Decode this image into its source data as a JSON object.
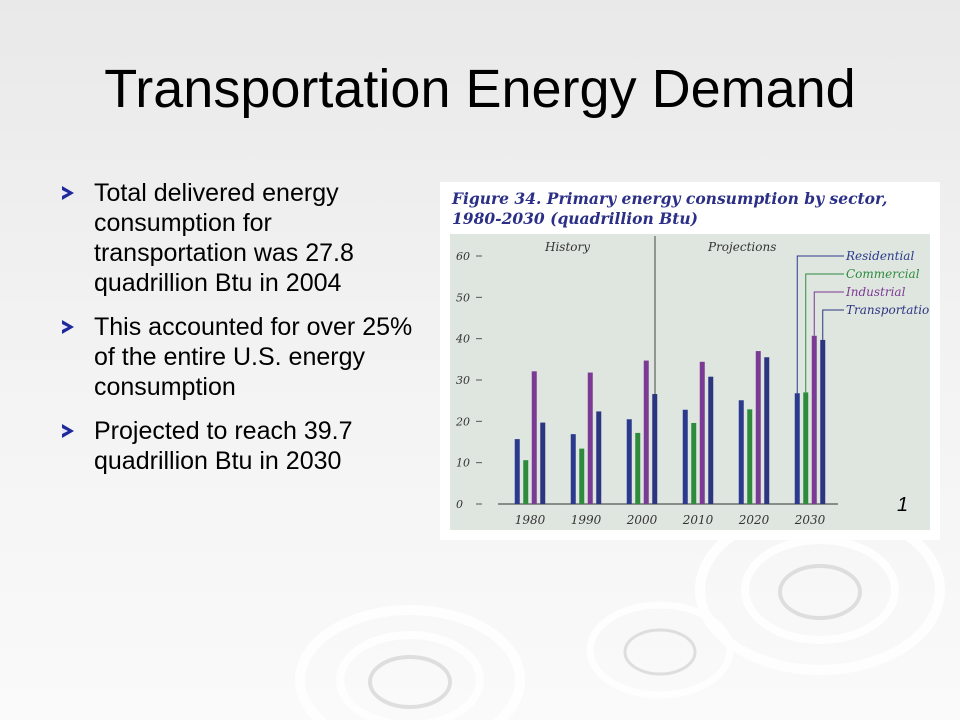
{
  "slide": {
    "title": "Transportation Energy Demand",
    "bullets": [
      "Total delivered energy consumption for transportation was 27.8 quadrillion Btu in 2004",
      "This accounted for over 25% of the entire U.S. energy consumption",
      "Projected to reach 39.7 quadrillion Btu in 2030"
    ],
    "footnote": "1"
  },
  "figure": {
    "caption_line1": "Figure 34. Primary energy consumption by sector,",
    "caption_line2": "1980-2030 (quadrillion Btu)"
  },
  "chart_data": {
    "type": "bar",
    "title": "Figure 34. Primary energy consumption by sector, 1980-2030 (quadrillion Btu)",
    "xlabel": "",
    "ylabel": "",
    "ylim": [
      0,
      60
    ],
    "yticks": [
      0,
      10,
      20,
      30,
      40,
      50,
      60
    ],
    "grid": false,
    "legend_placement": "top-right",
    "annotations": [
      "History",
      "Projections"
    ],
    "categories": [
      "1980",
      "1990",
      "2000",
      "2010",
      "2020",
      "2030"
    ],
    "series": [
      {
        "name": "Residential",
        "color": "#2b3a8c",
        "values": [
          15.7,
          16.9,
          20.5,
          22.8,
          25.1,
          26.8
        ]
      },
      {
        "name": "Commercial",
        "color": "#2e8b3e",
        "values": [
          10.6,
          13.4,
          17.2,
          19.6,
          22.9,
          27.0
        ]
      },
      {
        "name": "Industrial",
        "color": "#7b3a93",
        "values": [
          32.1,
          31.8,
          34.7,
          34.4,
          37.0,
          40.7
        ]
      },
      {
        "name": "Transportation",
        "color": "#2c3580",
        "values": [
          19.7,
          22.4,
          26.6,
          30.8,
          35.5,
          39.7
        ]
      }
    ]
  }
}
